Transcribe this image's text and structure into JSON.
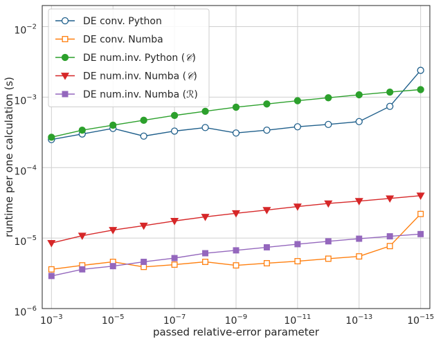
{
  "chart_data": {
    "type": "line",
    "title": "",
    "xlabel": "passed relative-error parameter",
    "ylabel": "runtime per one calculation (s)",
    "x_scale": "log",
    "y_scale": "log",
    "x_inverted": true,
    "grid": true,
    "legend_position": "top-left",
    "x": [
      0.001,
      0.0001,
      1e-05,
      1e-06,
      1e-07,
      1e-08,
      1e-09,
      1e-10,
      1e-11,
      1e-12,
      1e-13,
      1e-14,
      1e-15
    ],
    "xlim_exp": [
      -2.7,
      -15.3
    ],
    "ylim_exp": [
      -6,
      -1.7
    ],
    "x_ticks": [
      {
        "exp": -3,
        "base": "10",
        "sup": "−3"
      },
      {
        "exp": -5,
        "base": "10",
        "sup": "−5"
      },
      {
        "exp": -7,
        "base": "10",
        "sup": "−7"
      },
      {
        "exp": -9,
        "base": "10",
        "sup": "−9"
      },
      {
        "exp": -11,
        "base": "10",
        "sup": "−11"
      },
      {
        "exp": -13,
        "base": "10",
        "sup": "−13"
      },
      {
        "exp": -15,
        "base": "10",
        "sup": "−15"
      }
    ],
    "y_ticks": [
      {
        "exp": -6,
        "base": "10",
        "sup": "−6"
      },
      {
        "exp": -5,
        "base": "10",
        "sup": "−5"
      },
      {
        "exp": -4,
        "base": "10",
        "sup": "−4"
      },
      {
        "exp": -3,
        "base": "10",
        "sup": "−3"
      },
      {
        "exp": -2,
        "base": "10",
        "sup": "−2"
      }
    ],
    "series": [
      {
        "name": "DE conv. Python",
        "color": "#1f5f8b",
        "marker": "circle-open",
        "values": [
          0.00025,
          0.0003,
          0.00036,
          0.00028,
          0.00033,
          0.00037,
          0.00031,
          0.00034,
          0.00038,
          0.00041,
          0.00045,
          0.00074,
          0.0024
        ]
      },
      {
        "name": "DE conv. Numba",
        "color": "#ff7f0e",
        "marker": "square-open",
        "values": [
          3.6e-06,
          4.1e-06,
          4.6e-06,
          3.9e-06,
          4.2e-06,
          4.6e-06,
          4.1e-06,
          4.4e-06,
          4.7e-06,
          5.1e-06,
          5.5e-06,
          7.7e-06,
          2.2e-05
        ]
      },
      {
        "name": "DE num.inv. Python",
        "legend_math": "𝒞",
        "color": "#2ca02c",
        "marker": "circle",
        "values": [
          0.00027,
          0.00034,
          0.0004,
          0.00047,
          0.00055,
          0.00063,
          0.00072,
          0.0008,
          0.00089,
          0.00098,
          0.00108,
          0.00118,
          0.00128
        ]
      },
      {
        "name": "DE num.inv. Numba",
        "legend_math": "𝒞",
        "color": "#d62728",
        "marker": "triangle-down",
        "values": [
          8.5e-06,
          1.08e-05,
          1.3e-05,
          1.5e-05,
          1.75e-05,
          2e-05,
          2.25e-05,
          2.5e-05,
          2.8e-05,
          3.1e-05,
          3.35e-05,
          3.65e-05,
          4e-05
        ]
      },
      {
        "name": "DE num.inv. Numba",
        "legend_math": "ℛ",
        "color": "#9467bd",
        "marker": "square",
        "values": [
          2.9e-06,
          3.6e-06,
          4e-06,
          4.6e-06,
          5.2e-06,
          6.1e-06,
          6.7e-06,
          7.4e-06,
          8.2e-06,
          9e-06,
          9.8e-06,
          1.06e-05,
          1.14e-05
        ]
      }
    ]
  }
}
